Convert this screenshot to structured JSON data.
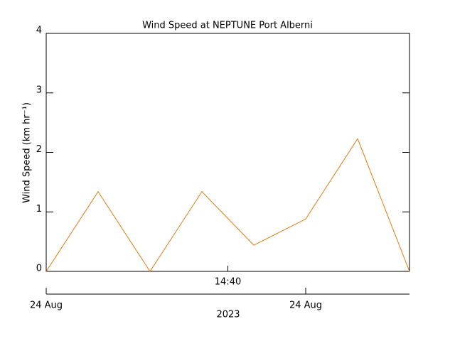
{
  "chart_data": {
    "type": "line",
    "title": "Wind Speed at NEPTUNE Port Alberni",
    "ylabel": "Wind Speed (km hr⁻¹)",
    "x": [
      0,
      1,
      2,
      3,
      4,
      5,
      6,
      7
    ],
    "series": [
      {
        "name": "Wind Speed",
        "color": "#e07b10",
        "values": [
          0,
          1.34,
          0,
          1.34,
          0.44,
          0.88,
          2.23,
          0
        ]
      }
    ],
    "xlim": [
      0,
      7
    ],
    "xticks": [
      {
        "value": 3.5,
        "label": "14:40"
      }
    ],
    "date_ticks": [
      {
        "value": 0,
        "label": "24 Aug"
      },
      {
        "value": 5,
        "label": "24 Aug"
      }
    ],
    "xlabel": "2023",
    "ylim": [
      0,
      4
    ],
    "yticks": [
      0,
      1,
      2,
      3,
      4
    ]
  }
}
